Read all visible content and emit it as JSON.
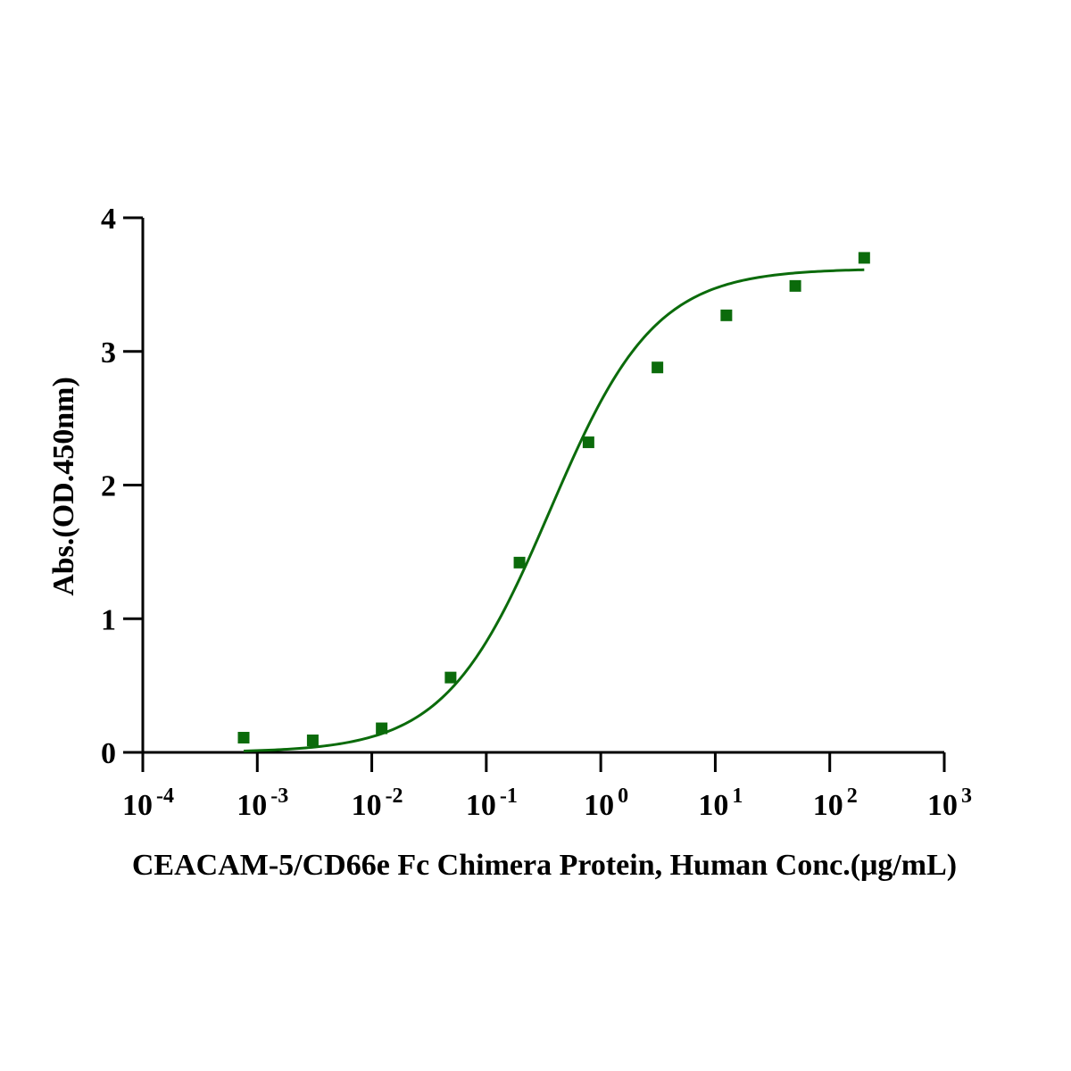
{
  "chart_data": {
    "type": "scatter",
    "xlabel": "CEACAM-5/CD66e Fc Chimera Protein, Human Conc.(μg/mL)",
    "ylabel": "Abs.(OD.450nm)",
    "x_scale": "log",
    "xlim": [
      0.0001,
      1000
    ],
    "ylim": [
      0,
      4
    ],
    "x_ticks": [
      {
        "base": "10",
        "exp": "-4"
      },
      {
        "base": "10",
        "exp": "-3"
      },
      {
        "base": "10",
        "exp": "-2"
      },
      {
        "base": "10",
        "exp": "-1"
      },
      {
        "base": "10",
        "exp": "0"
      },
      {
        "base": "10",
        "exp": "1"
      },
      {
        "base": "10",
        "exp": "2"
      },
      {
        "base": "10",
        "exp": "3"
      }
    ],
    "y_ticks": [
      "0",
      "1",
      "2",
      "3",
      "4"
    ],
    "grid": false,
    "legend": "none",
    "marker": "square",
    "color": "#0b6b0b",
    "points": [
      {
        "x": 0.00076,
        "y": 0.11
      },
      {
        "x": 0.00305,
        "y": 0.09
      },
      {
        "x": 0.0122,
        "y": 0.18
      },
      {
        "x": 0.0488,
        "y": 0.56
      },
      {
        "x": 0.195,
        "y": 1.42
      },
      {
        "x": 0.781,
        "y": 2.32
      },
      {
        "x": 3.125,
        "y": 2.88
      },
      {
        "x": 12.5,
        "y": 3.27
      },
      {
        "x": 50,
        "y": 3.49
      },
      {
        "x": 200,
        "y": 3.7
      }
    ],
    "fit_curve": {
      "model": "4PL",
      "bottom": 0.0,
      "top": 3.62,
      "ec50": 0.36,
      "hill": 0.95,
      "x_range": [
        0.00076,
        200
      ]
    }
  }
}
